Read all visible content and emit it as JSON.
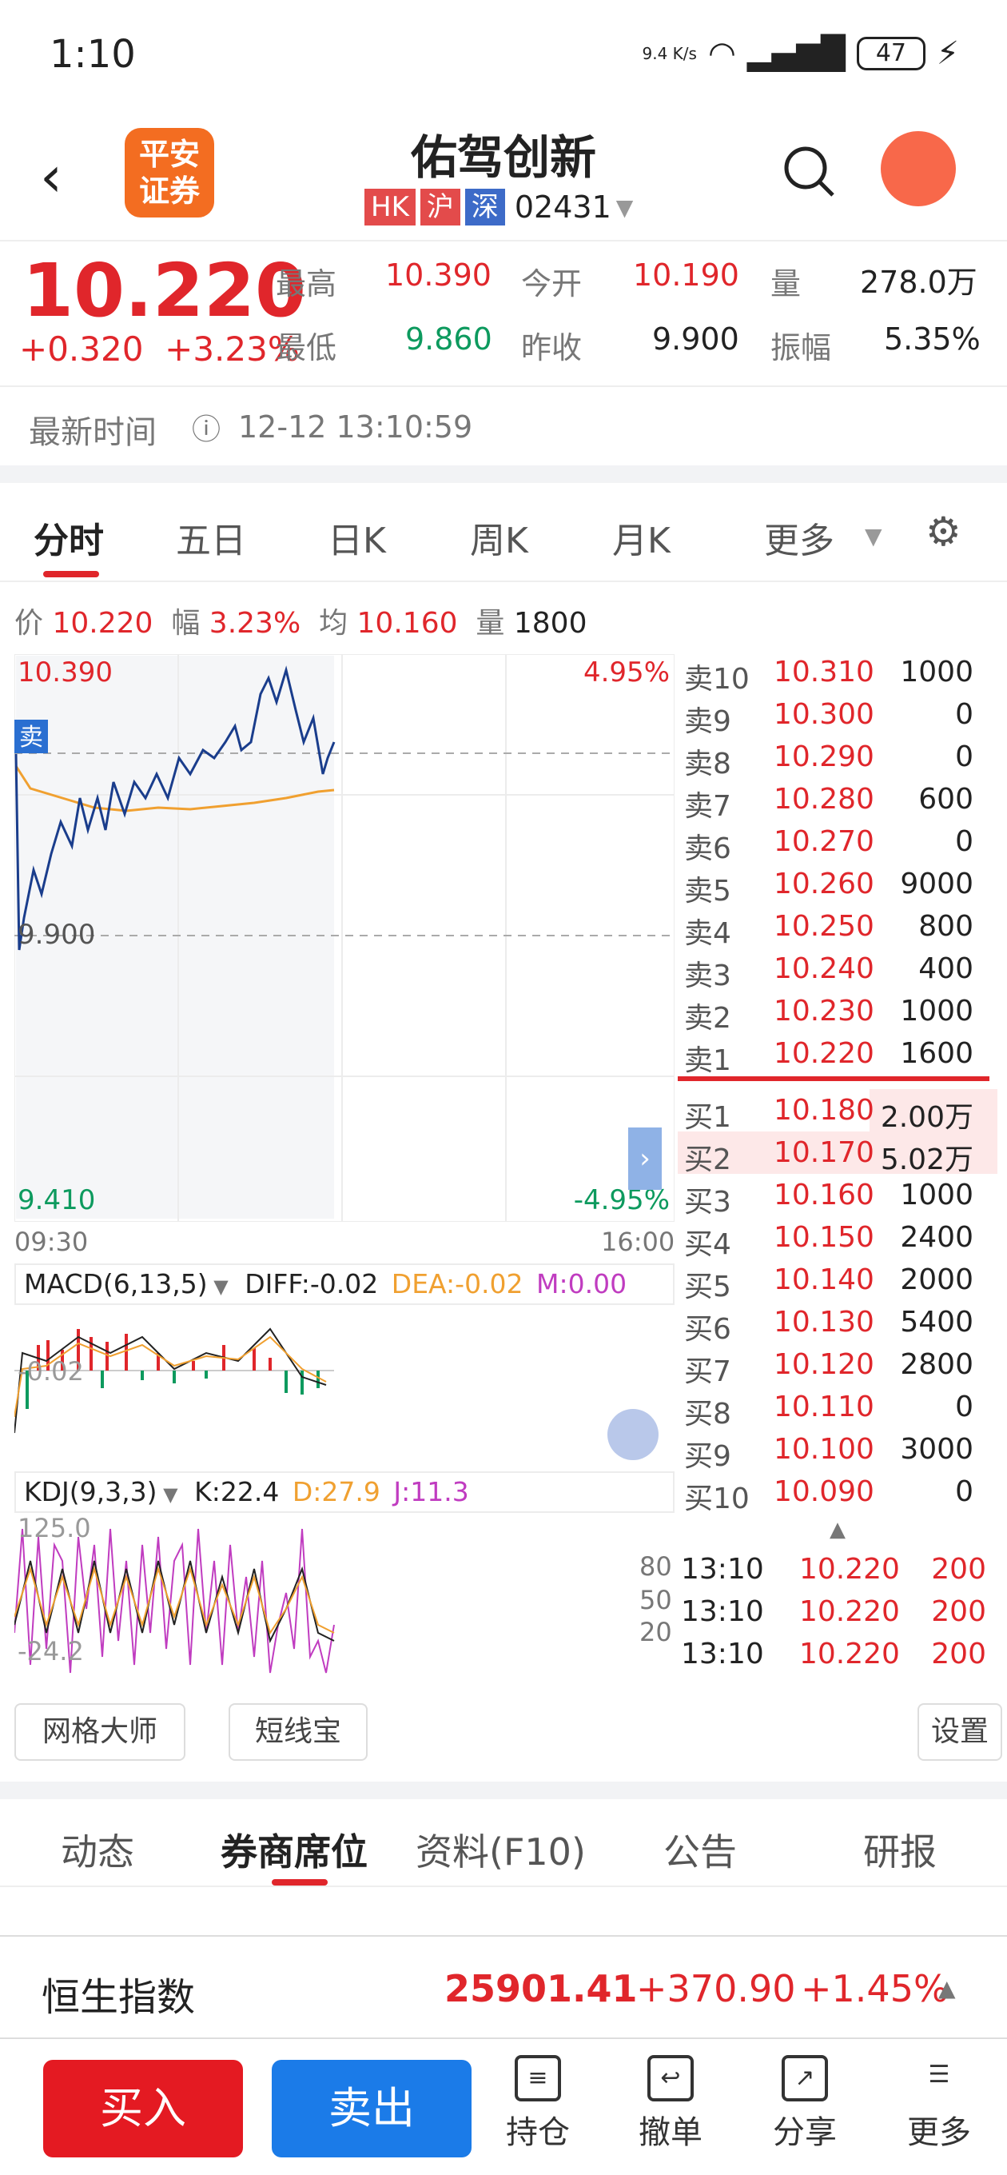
{
  "status": {
    "time": "1:10",
    "speed": "9.4 K/s",
    "battery": "47"
  },
  "header": {
    "logo_text": "平安证券",
    "title": "佑驾创新",
    "tags": [
      "HK",
      "沪",
      "深"
    ],
    "code": "02431"
  },
  "quote": {
    "price": "10.220",
    "change": "+0.320",
    "change_pct": "+3.23%",
    "high_label": "最高",
    "high": "10.390",
    "open_label": "今开",
    "open": "10.190",
    "vol_label": "量",
    "vol": "278.0万",
    "low_label": "最低",
    "low": "9.860",
    "prev_label": "昨收",
    "prev": "9.900",
    "amp_label": "振幅",
    "amp": "5.35%"
  },
  "latest": {
    "label": "最新时间",
    "value": "12-12 13:10:59"
  },
  "tabs": [
    "分时",
    "五日",
    "日K",
    "周K",
    "月K",
    "更多"
  ],
  "info": {
    "price_label": "价",
    "price": "10.220",
    "amp_label": "幅",
    "amp": "3.23%",
    "avg_label": "均",
    "avg": "10.160",
    "vol_label": "量",
    "vol": "1800"
  },
  "chart": {
    "top_price": "10.390",
    "top_pct": "4.95%",
    "mid_price": "9.900",
    "bottom_price": "9.410",
    "bottom_pct": "-4.95%",
    "start_time": "09:30",
    "end_time": "16:00",
    "sell_badge": "卖"
  },
  "macd": {
    "label": "MACD(6,13,5)",
    "diff": "DIFF:-0.02",
    "dea": "DEA:-0.02",
    "m": "M:0.00",
    "axis": "-0.02"
  },
  "kdj": {
    "label": "KDJ(9,3,3)",
    "k": "K:22.4",
    "d": "D:27.9",
    "j": "J:11.3",
    "top": "125.0",
    "bottom": "-24.2",
    "levels": [
      "80",
      "50",
      "20"
    ]
  },
  "orderbook": {
    "asks": [
      [
        "卖10",
        "10.310",
        "1000"
      ],
      [
        "卖9",
        "10.300",
        "0"
      ],
      [
        "卖8",
        "10.290",
        "0"
      ],
      [
        "卖7",
        "10.280",
        "600"
      ],
      [
        "卖6",
        "10.270",
        "0"
      ],
      [
        "卖5",
        "10.260",
        "9000"
      ],
      [
        "卖4",
        "10.250",
        "800"
      ],
      [
        "卖3",
        "10.240",
        "400"
      ],
      [
        "卖2",
        "10.230",
        "1000"
      ],
      [
        "卖1",
        "10.220",
        "1600"
      ]
    ],
    "bids": [
      [
        "买1",
        "10.180",
        "2.00万"
      ],
      [
        "买2",
        "10.170",
        "5.02万"
      ],
      [
        "买3",
        "10.160",
        "1000"
      ],
      [
        "买4",
        "10.150",
        "2400"
      ],
      [
        "买5",
        "10.140",
        "2000"
      ],
      [
        "买6",
        "10.130",
        "5400"
      ],
      [
        "买7",
        "10.120",
        "2800"
      ],
      [
        "买8",
        "10.110",
        "0"
      ],
      [
        "买9",
        "10.100",
        "3000"
      ],
      [
        "买10",
        "10.090",
        "0"
      ]
    ],
    "trades": [
      [
        "13:10",
        "10.220",
        "200"
      ],
      [
        "13:10",
        "10.220",
        "200"
      ],
      [
        "13:10",
        "10.220",
        "200"
      ]
    ]
  },
  "tools": [
    "网格大师",
    "短线宝",
    "设置"
  ],
  "bottom_tabs": [
    "动态",
    "券商席位",
    "资料(F10)",
    "公告",
    "研报"
  ],
  "index": {
    "name": "恒生指数",
    "value": "25901.41",
    "change": "+370.90",
    "pct": "+1.45%"
  },
  "actions": {
    "buy": "买入",
    "sell": "卖出",
    "items": [
      "持仓",
      "撤单",
      "分享",
      "更多"
    ]
  }
}
